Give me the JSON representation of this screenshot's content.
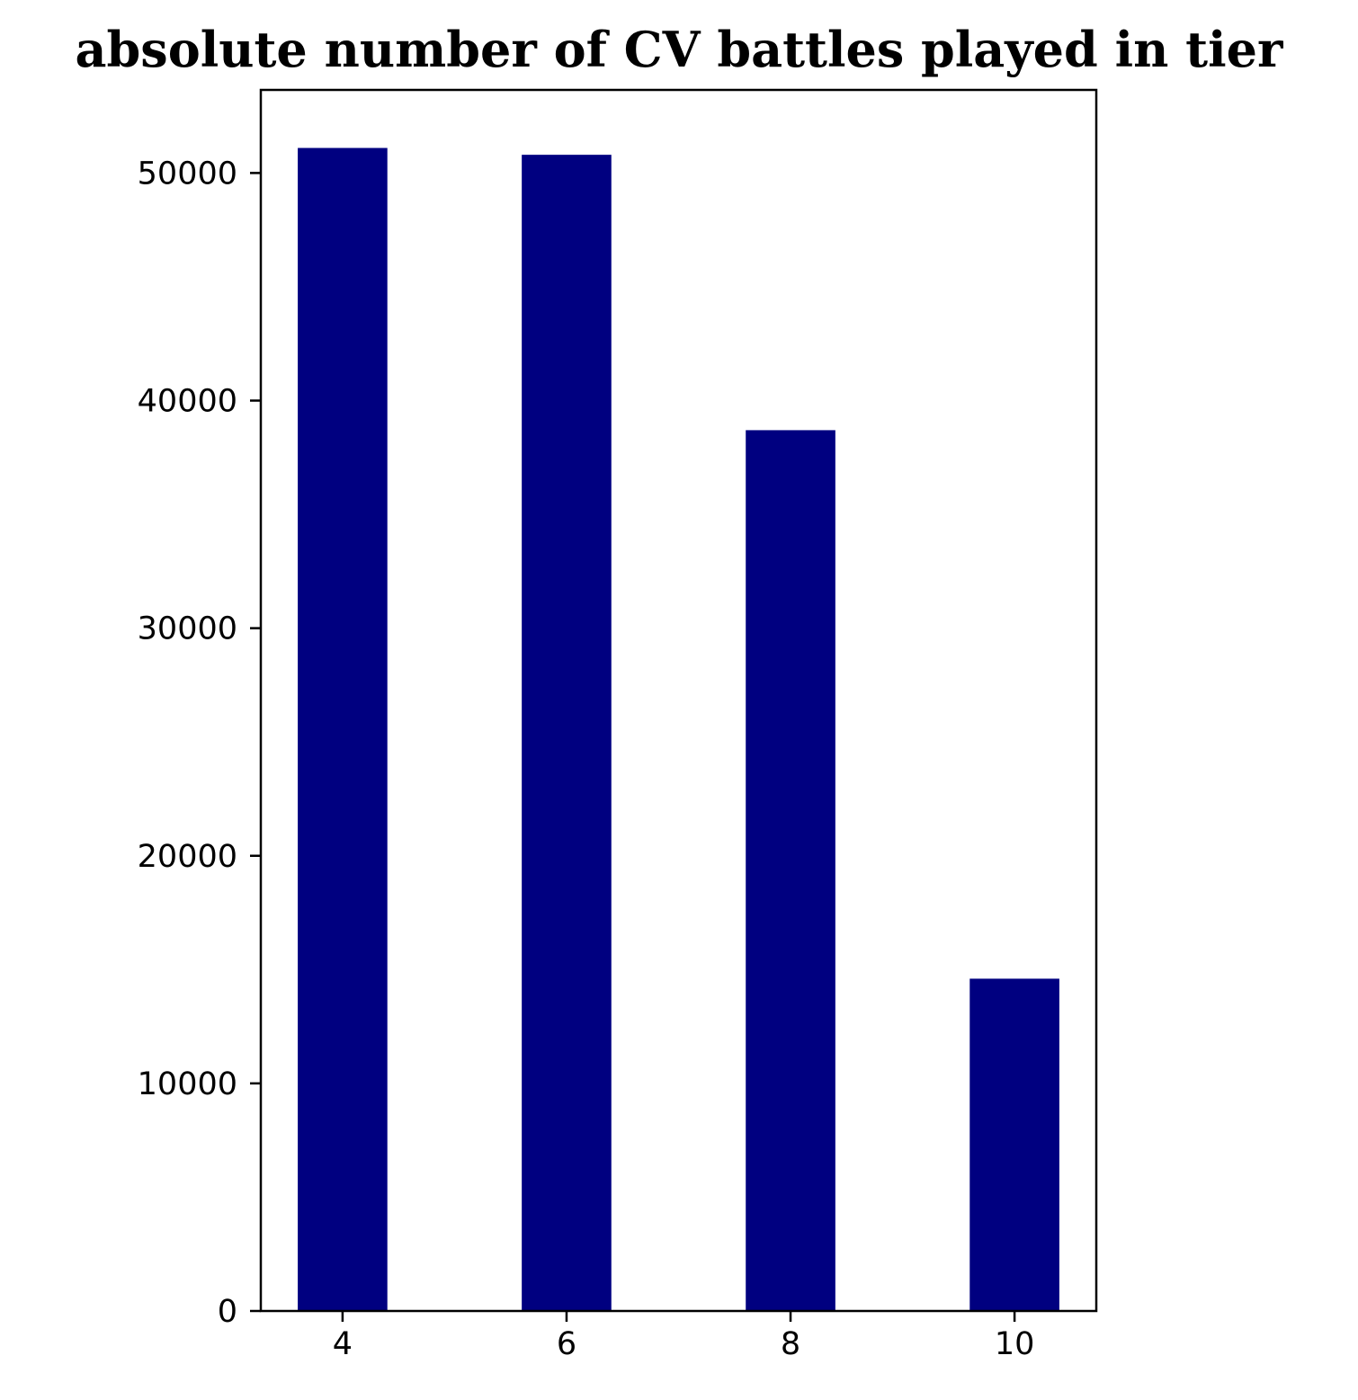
{
  "chart_data": {
    "type": "bar",
    "title": "absolute number of CV battles played in tier",
    "xlabel": "",
    "ylabel": "",
    "x": [
      4,
      6,
      8,
      10
    ],
    "values": [
      51100,
      50800,
      38700,
      14600
    ],
    "bar_width": 0.8,
    "xlim": [
      3.27,
      10.73
    ],
    "ylim": [
      0,
      53650
    ],
    "xticks": [
      "4",
      "6",
      "8",
      "10"
    ],
    "yticks": [
      "0",
      "10000",
      "20000",
      "30000",
      "40000",
      "50000"
    ],
    "bar_color": "#000080",
    "grid": false,
    "legend": false
  }
}
